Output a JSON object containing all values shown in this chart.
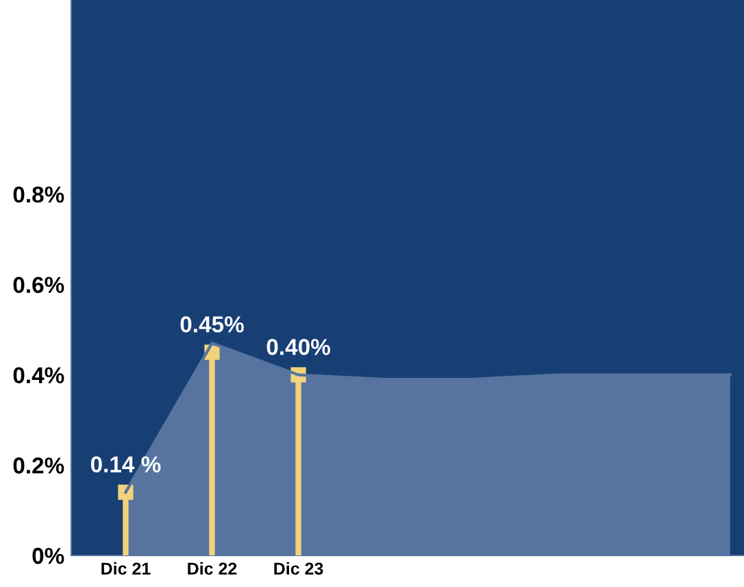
{
  "chart_data": {
    "type": "area",
    "categories": [
      "Dic 21",
      "Dic 22",
      "Dic 23",
      null,
      null,
      null,
      null,
      null
    ],
    "ylim": [
      0,
      1.23
    ],
    "yticks": [
      {
        "value": 0,
        "label": "0%"
      },
      {
        "value": 0.2,
        "label": "0.2%"
      },
      {
        "value": 0.4,
        "label": "0.4%"
      },
      {
        "value": 0.6,
        "label": "0.6%"
      },
      {
        "value": 0.8,
        "label": "0.8%"
      }
    ],
    "grid": false,
    "series": [
      {
        "color": "#56749f",
        "values": [
          0.14,
          0.47,
          0.4,
          0.39,
          0.39,
          0.4,
          0.4,
          0.4
        ]
      },
      {
        "type": "lollipop",
        "color": "#f2d27a",
        "marker": "square",
        "values": [
          0.14,
          0.45,
          0.4,
          null,
          null,
          null,
          null,
          null
        ],
        "value_labels": [
          "0.14 %",
          "0.45%",
          "0.40%",
          null,
          null,
          null,
          null,
          null
        ]
      }
    ]
  }
}
